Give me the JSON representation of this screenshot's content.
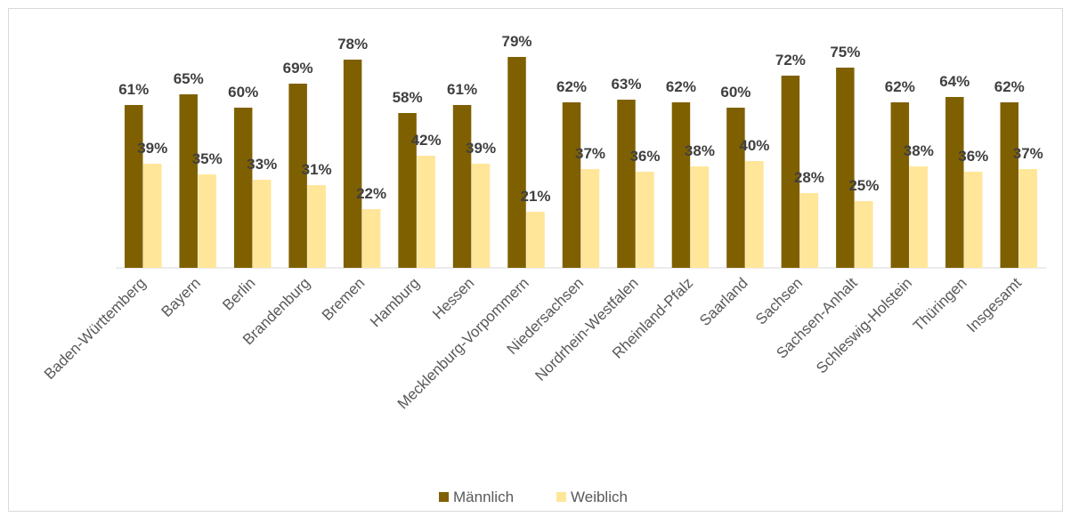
{
  "chart_data": {
    "type": "bar",
    "categories": [
      "Baden-Württemberg",
      "Bayern",
      "Berlin",
      "Brandenburg",
      "Bremen",
      "Hamburg",
      "Hessen",
      "Mecklenburg-Vorpommern",
      "Niedersachsen",
      "Nordrhein-Westfalen",
      "Rheinland-Pfalz",
      "Saarland",
      "Sachsen",
      "Sachsen-Anhalt",
      "Schleswig-Holstein",
      "Thüringen",
      "Insgesamt"
    ],
    "series": [
      {
        "name": "Männlich",
        "color": "#7f6000",
        "values": [
          61,
          65,
          60,
          69,
          78,
          58,
          61,
          79,
          62,
          63,
          62,
          60,
          72,
          75,
          62,
          64,
          62
        ],
        "labels": [
          "61%",
          "65%",
          "60%",
          "69%",
          "78%",
          "58%",
          "61%",
          "79%",
          "62%",
          "63%",
          "62%",
          "60%",
          "72%",
          "75%",
          "62%",
          "64%",
          "62%"
        ]
      },
      {
        "name": "Weiblich",
        "color": "#ffe699",
        "values": [
          39,
          35,
          33,
          31,
          22,
          42,
          39,
          21,
          37,
          36,
          38,
          40,
          28,
          25,
          38,
          36,
          37
        ],
        "labels": [
          "39%",
          "35%",
          "33%",
          "31%",
          "22%",
          "42%",
          "39%",
          "21%",
          "37%",
          "36%",
          "38%",
          "40%",
          "28%",
          "25%",
          "38%",
          "36%",
          "37%"
        ]
      }
    ],
    "ylim": [
      0,
      100
    ],
    "grid": false,
    "legend_position": "bottom",
    "axis_color": "#d9d9d9",
    "label_color": "#404040"
  }
}
